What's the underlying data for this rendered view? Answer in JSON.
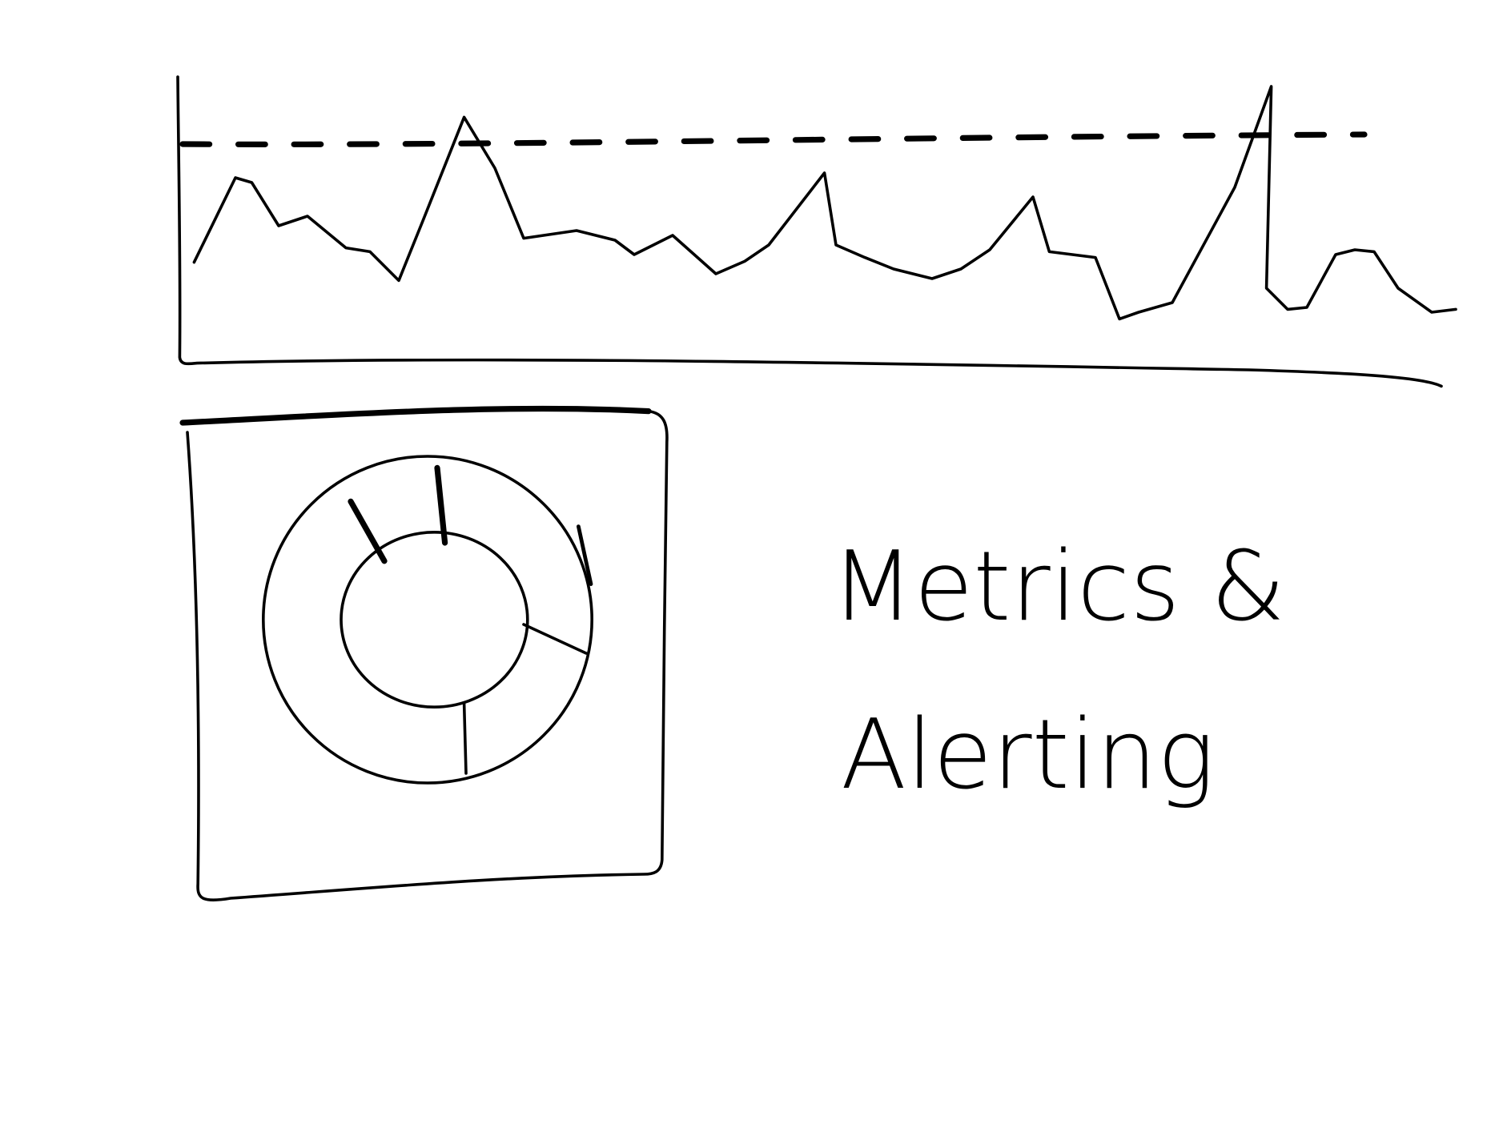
{
  "title": {
    "lines": [
      "Metrics &",
      "Alerting"
    ]
  }
}
